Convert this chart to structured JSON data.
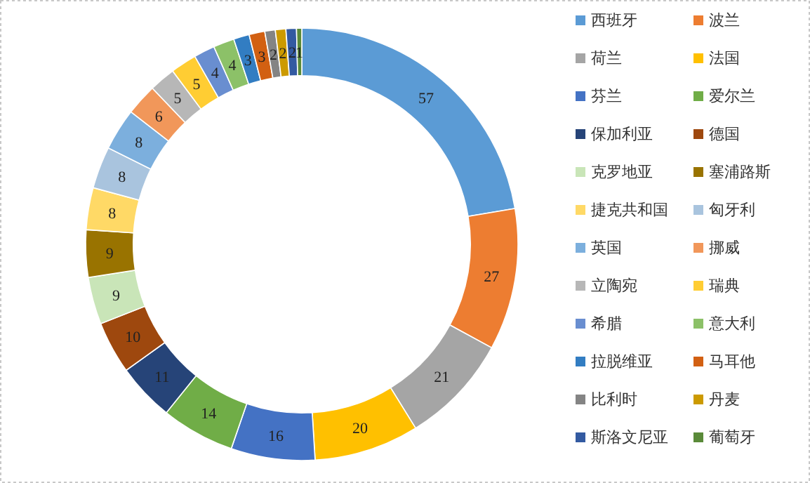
{
  "chart_data": {
    "type": "donut",
    "categories": [
      "西班牙",
      "波兰",
      "荷兰",
      "法国",
      "芬兰",
      "爱尔兰",
      "保加利亚",
      "德国",
      "克罗地亚",
      "塞浦路斯",
      "捷克共和国",
      "匈牙利",
      "英国",
      "挪威",
      "立陶宛",
      "瑞典",
      "希腊",
      "意大利",
      "拉脱维亚",
      "马耳他",
      "比利时",
      "丹麦",
      "斯洛文尼亚",
      "葡萄牙"
    ],
    "values": [
      57,
      27,
      21,
      20,
      16,
      14,
      11,
      10,
      9,
      9,
      8,
      8,
      8,
      6,
      5,
      5,
      4,
      4,
      3,
      3,
      2,
      2,
      2,
      1
    ],
    "colors": [
      "#5b9bd5",
      "#ed7d31",
      "#a5a5a5",
      "#ffc000",
      "#4472c4",
      "#70ad47",
      "#264478",
      "#9e480e",
      "#c9e5b8",
      "#997300",
      "#ffd966",
      "#a9c4de",
      "#7cafdd",
      "#f1975a",
      "#b7b7b7",
      "#ffcd33",
      "#698ed0",
      "#8cc168",
      "#327dc2",
      "#d26012",
      "#848484",
      "#cc9a00",
      "#335aa1",
      "#5a8a39"
    ],
    "data_labels": true,
    "legend": "right"
  }
}
